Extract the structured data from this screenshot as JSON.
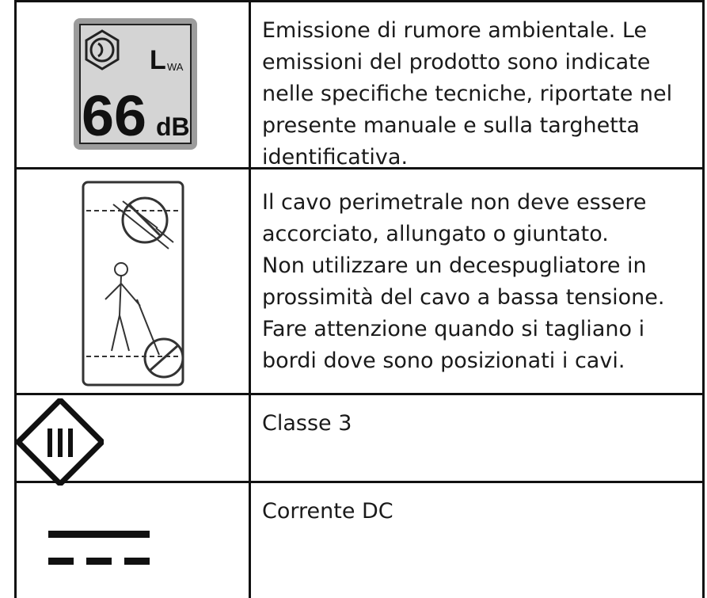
{
  "rows": [
    {
      "icon_texts": {
        "level": "66",
        "unit": "dB",
        "symbol": "L",
        "subscript": "WA"
      },
      "lines": [
        "Emissione di rumore ambientale. Le",
        "emissioni del prodotto sono indicate",
        "nelle specifiche tecniche, riportate nel",
        "presente manuale e sulla targhetta",
        "identificativa."
      ]
    },
    {
      "lines": [
        "Il cavo perimetrale non deve essere",
        "accorciato, allungato o giuntato.",
        "Non utilizzare un decespugliatore in",
        "prossimità del cavo a bassa tensione.",
        "Fare attenzione quando si tagliano i",
        "bordi dove sono posizionati i cavi."
      ]
    },
    {
      "lines": [
        "Classe 3"
      ]
    },
    {
      "lines": [
        "Corrente DC"
      ]
    }
  ]
}
